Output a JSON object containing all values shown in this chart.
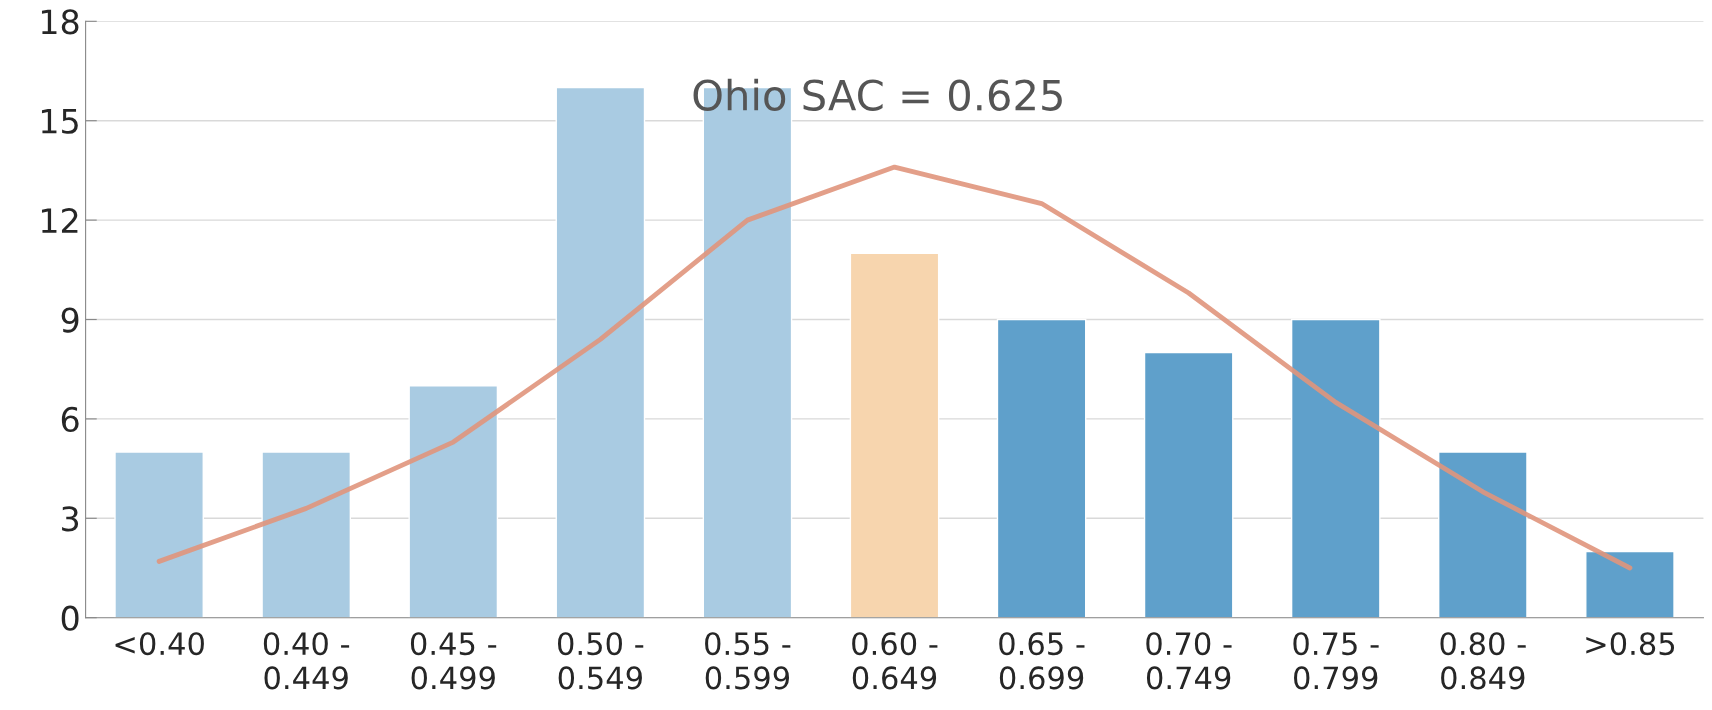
{
  "chart_data": {
    "type": "bar",
    "categories": [
      "<0.40",
      "0.40 -\n0.449",
      "0.45 -\n0.499",
      "0.50 -\n0.549",
      "0.55 -\n0.599",
      "0.60 -\n0.649",
      "0.65 -\n0.699",
      "0.70 -\n0.749",
      "0.75 -\n0.799",
      "0.80 -\n0.849",
      ">0.85"
    ],
    "series": [
      {
        "values": [
          5,
          5,
          7,
          16,
          16,
          11,
          9,
          8,
          9,
          5,
          2
        ],
        "colors": [
          "#a9cbe2",
          "#a9cbe2",
          "#a9cbe2",
          "#a9cbe2",
          "#a9cbe2",
          "#f7d5ae",
          "#5fa0cb",
          "#5fa0cb",
          "#5fa0cb",
          "#5fa0cb",
          "#5fa0cb"
        ]
      },
      {
        "type": "line",
        "color": "#e0957c",
        "values": [
          1.7,
          3.3,
          5.3,
          8.4,
          12.0,
          13.6,
          12.5,
          9.8,
          6.5,
          3.8,
          1.5
        ]
      }
    ],
    "annotations": [
      "Ohio SAC = 0.625"
    ],
    "ylim": [
      0,
      18
    ],
    "yticks": [
      0,
      3,
      6,
      9,
      12,
      15,
      18
    ],
    "grid": "y",
    "marker": "none",
    "line_style": "solid"
  }
}
